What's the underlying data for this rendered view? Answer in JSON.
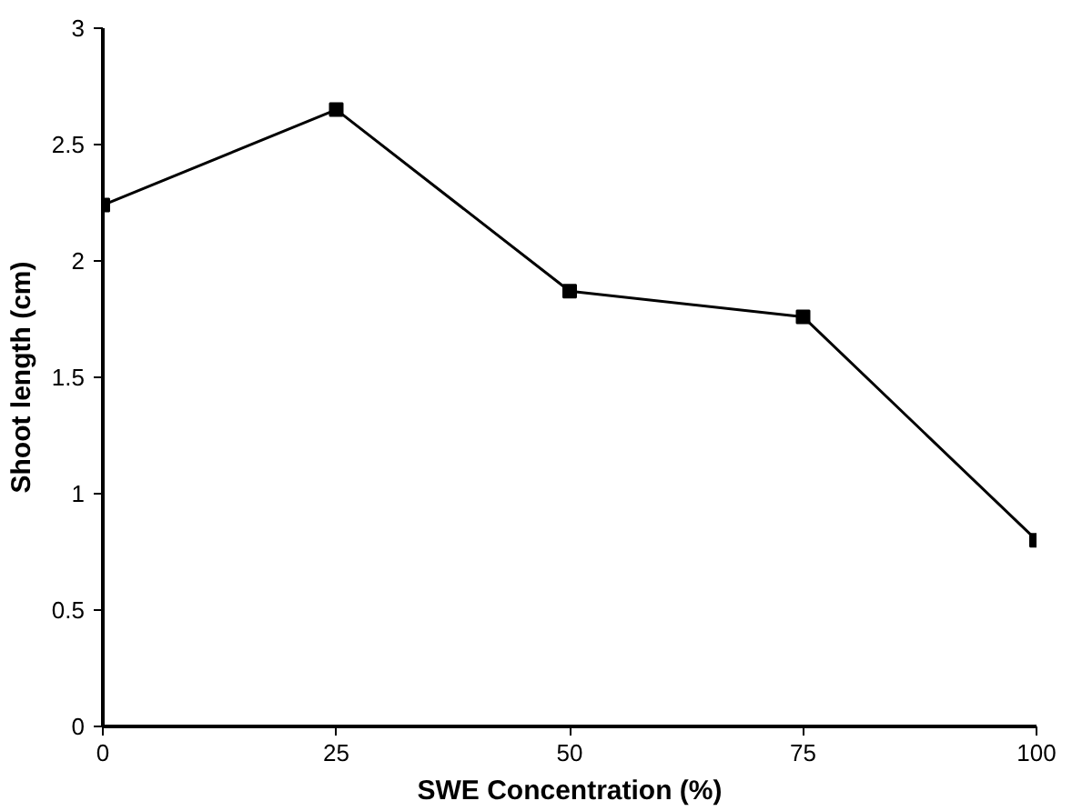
{
  "chart_data": {
    "type": "line",
    "xlabel": "SWE Concentration (%)",
    "ylabel": "Shoot length (cm)",
    "x": [
      0,
      25,
      50,
      75,
      100
    ],
    "series": [
      {
        "color": "#000000",
        "values": [
          2.24,
          2.65,
          1.87,
          1.76,
          0.8
        ]
      }
    ],
    "xlim": [
      0,
      100
    ],
    "xticks": [
      0,
      25,
      50,
      75,
      100
    ],
    "ylim": [
      0,
      3
    ],
    "yticks": [
      0,
      0.5,
      1,
      1.5,
      2,
      2.5,
      3
    ],
    "marker": "square",
    "line_style": "solid"
  }
}
